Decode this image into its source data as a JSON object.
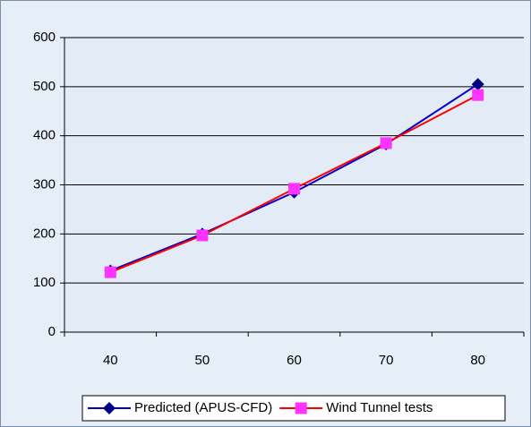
{
  "chart_data": {
    "type": "line",
    "categories": [
      "40",
      "50",
      "60",
      "70",
      "80"
    ],
    "series": [
      {
        "name": "Predicted (APUS-CFD)",
        "color": "#0000cc",
        "marker": "diamond",
        "values": [
          125,
          200,
          285,
          383,
          505
        ]
      },
      {
        "name": "Wind Tunnel tests",
        "color": "#ff0000",
        "marker_color": "#ff33ff",
        "marker": "square",
        "values": [
          122,
          197,
          292,
          385,
          483
        ]
      }
    ],
    "ylim": [
      0,
      600
    ],
    "yticks": [
      0,
      100,
      200,
      300,
      400,
      500,
      600
    ],
    "grid": true,
    "legend": "bottom"
  }
}
